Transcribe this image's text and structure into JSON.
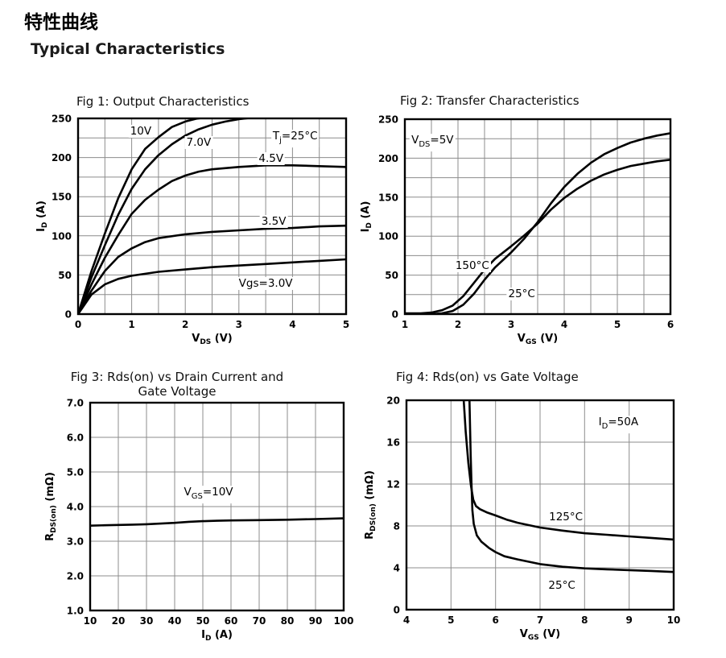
{
  "page": {
    "title_cn": "特性曲线",
    "title_en": "Typical Characteristics"
  },
  "colors": {
    "curve": "#000000",
    "grid": "#8c8c8c",
    "border": "#000000"
  },
  "chart_data": [
    {
      "id": "fig1",
      "type": "line",
      "title": "Fig 1: Output Characteristics",
      "xlabel": {
        "pre": "V",
        "sub": "DS",
        "post": " (V)"
      },
      "ylabel": {
        "pre": "I",
        "sub": "D",
        "post": " (A)"
      },
      "xlim": [
        0,
        5
      ],
      "ylim": [
        0,
        250
      ],
      "x_major": 1,
      "x_minor": 0.5,
      "y_major": 50,
      "y_minor": 25,
      "x_decimals": 0,
      "y_decimals": 0,
      "grid": true,
      "legend": "none",
      "series": [
        {
          "name": "Vgs=10V",
          "points": [
            [
              0,
              0
            ],
            [
              0.1,
              22
            ],
            [
              0.25,
              55
            ],
            [
              0.5,
              103
            ],
            [
              0.75,
              148
            ],
            [
              1,
              185
            ],
            [
              1.25,
              211
            ],
            [
              1.5,
              226
            ],
            [
              1.75,
              239
            ],
            [
              2,
              246
            ],
            [
              2.2,
              249.5
            ],
            [
              2.45,
              252
            ]
          ]
        },
        {
          "name": "Vgs=7.0V",
          "points": [
            [
              0,
              0
            ],
            [
              0.25,
              47
            ],
            [
              0.5,
              88
            ],
            [
              0.75,
              127
            ],
            [
              1,
              160
            ],
            [
              1.25,
              185
            ],
            [
              1.5,
              203
            ],
            [
              1.75,
              217
            ],
            [
              2,
              228
            ],
            [
              2.25,
              236
            ],
            [
              2.5,
              242
            ],
            [
              2.75,
              246
            ],
            [
              3,
              249
            ],
            [
              3.2,
              250.5
            ],
            [
              3.45,
              252
            ]
          ]
        },
        {
          "name": "Vgs=4.5V",
          "points": [
            [
              0,
              0
            ],
            [
              0.25,
              38
            ],
            [
              0.5,
              72
            ],
            [
              0.75,
              101
            ],
            [
              1,
              128
            ],
            [
              1.25,
              146
            ],
            [
              1.5,
              159
            ],
            [
              1.75,
              170
            ],
            [
              2,
              177
            ],
            [
              2.25,
              182
            ],
            [
              2.5,
              185
            ],
            [
              3,
              188
            ],
            [
              3.5,
              190
            ],
            [
              4,
              190
            ],
            [
              4.5,
              189
            ],
            [
              5,
              188
            ]
          ]
        },
        {
          "name": "Vgs=3.5V",
          "points": [
            [
              0,
              0
            ],
            [
              0.25,
              30
            ],
            [
              0.5,
              55
            ],
            [
              0.75,
              73
            ],
            [
              1,
              84
            ],
            [
              1.25,
              92
            ],
            [
              1.5,
              97
            ],
            [
              2,
              102
            ],
            [
              2.5,
              105
            ],
            [
              3,
              107
            ],
            [
              3.5,
              109
            ],
            [
              4,
              110
            ],
            [
              4.5,
              112
            ],
            [
              5,
              113
            ]
          ]
        },
        {
          "name": "Vgs=3.0V",
          "points": [
            [
              0,
              0
            ],
            [
              0.25,
              25
            ],
            [
              0.5,
              38
            ],
            [
              0.75,
              45
            ],
            [
              1,
              49
            ],
            [
              1.5,
              54
            ],
            [
              2,
              57
            ],
            [
              2.5,
              60
            ],
            [
              3,
              62
            ],
            [
              3.5,
              64
            ],
            [
              4,
              66
            ],
            [
              4.5,
              68
            ],
            [
              5,
              70
            ]
          ]
        }
      ],
      "annotations": [
        {
          "pre": "10V",
          "sub": "",
          "post": "",
          "x": 1.17,
          "y": 234
        },
        {
          "pre": "7.0V",
          "sub": "",
          "post": "",
          "x": 2.25,
          "y": 219
        },
        {
          "pre": "T",
          "sub": "j",
          "post": "=25°C",
          "x": 4.05,
          "y": 224
        },
        {
          "pre": "4.5V",
          "sub": "",
          "post": "",
          "x": 3.6,
          "y": 199
        },
        {
          "pre": "3.5V",
          "sub": "",
          "post": "",
          "x": 3.65,
          "y": 118
        },
        {
          "pre": "Vgs=3.0V",
          "sub": "",
          "post": "",
          "x": 3.5,
          "y": 39
        }
      ]
    },
    {
      "id": "fig2",
      "type": "line",
      "title": "Fig 2: Transfer Characteristics",
      "xlabel": {
        "pre": "V",
        "sub": "GS",
        "post": " (V)"
      },
      "ylabel": {
        "pre": "I",
        "sub": "D",
        "post": " (A)"
      },
      "xlim": [
        1,
        6
      ],
      "ylim": [
        0,
        250
      ],
      "x_major": 1,
      "x_minor": 0.5,
      "y_major": 50,
      "y_minor": 25,
      "x_decimals": 0,
      "y_decimals": 0,
      "grid": true,
      "legend": "none",
      "series": [
        {
          "name": "150°C",
          "points": [
            [
              1,
              1
            ],
            [
              1.3,
              1
            ],
            [
              1.5,
              2
            ],
            [
              1.7,
              5
            ],
            [
              1.9,
              11
            ],
            [
              2.1,
              23
            ],
            [
              2.3,
              40
            ],
            [
              2.5,
              57
            ],
            [
              2.7,
              71
            ],
            [
              3,
              87
            ],
            [
              3.25,
              101
            ],
            [
              3.5,
              116
            ],
            [
              3.75,
              134
            ],
            [
              4,
              149
            ],
            [
              4.25,
              161
            ],
            [
              4.5,
              171
            ],
            [
              4.75,
              179
            ],
            [
              5,
              185
            ],
            [
              5.25,
              190
            ],
            [
              5.5,
              193
            ],
            [
              5.75,
              196
            ],
            [
              6,
              198
            ]
          ]
        },
        {
          "name": "25°C",
          "points": [
            [
              1,
              0
            ],
            [
              1.5,
              0
            ],
            [
              1.7,
              1
            ],
            [
              1.9,
              4
            ],
            [
              2.1,
              12
            ],
            [
              2.3,
              26
            ],
            [
              2.5,
              44
            ],
            [
              2.7,
              60
            ],
            [
              3,
              79
            ],
            [
              3.25,
              97
            ],
            [
              3.5,
              118
            ],
            [
              3.75,
              142
            ],
            [
              4,
              163
            ],
            [
              4.25,
              180
            ],
            [
              4.5,
              194
            ],
            [
              4.75,
              205
            ],
            [
              5,
              213
            ],
            [
              5.25,
              220
            ],
            [
              5.5,
              225
            ],
            [
              5.75,
              229
            ],
            [
              6,
              232
            ]
          ]
        }
      ],
      "annotations": [
        {
          "pre": "V",
          "sub": "DS",
          "post": "=5V",
          "x": 1.52,
          "y": 220
        },
        {
          "pre": "150°C",
          "sub": "",
          "post": "",
          "x": 2.27,
          "y": 62
        },
        {
          "pre": "25°C",
          "sub": "",
          "post": "",
          "x": 3.2,
          "y": 26
        }
      ]
    },
    {
      "id": "fig3",
      "type": "line",
      "title": "Fig 3: Rds(on) vs Drain Current and\nGate Voltage",
      "xlabel": {
        "pre": "I",
        "sub": "D",
        "post": " (A)"
      },
      "ylabel": {
        "pre": "R",
        "sub": "DS(on)",
        "post": " (mΩ)"
      },
      "xlim": [
        10,
        100
      ],
      "ylim": [
        1,
        7
      ],
      "x_major": 10,
      "x_minor": 10,
      "y_major": 1,
      "y_minor": 1,
      "x_decimals": 0,
      "y_decimals": 1,
      "grid": true,
      "legend": "none",
      "series": [
        {
          "name": "VGS=10V",
          "points": [
            [
              10,
              3.45
            ],
            [
              15,
              3.46
            ],
            [
              20,
              3.47
            ],
            [
              25,
              3.48
            ],
            [
              30,
              3.49
            ],
            [
              35,
              3.51
            ],
            [
              40,
              3.53
            ],
            [
              45,
              3.56
            ],
            [
              50,
              3.58
            ],
            [
              55,
              3.59
            ],
            [
              60,
              3.6
            ],
            [
              70,
              3.61
            ],
            [
              80,
              3.62
            ],
            [
              90,
              3.64
            ],
            [
              100,
              3.66
            ]
          ]
        }
      ],
      "annotations": [
        {
          "pre": "V",
          "sub": "GS",
          "post": "=10V",
          "x": 52,
          "y": 4.35
        }
      ]
    },
    {
      "id": "fig4",
      "type": "line",
      "title": "Fig 4: Rds(on) vs Gate Voltage",
      "xlabel": {
        "pre": "V",
        "sub": "GS",
        "post": " (V)"
      },
      "ylabel": {
        "pre": "R",
        "sub": "DS(on)",
        "post": " (mΩ)"
      },
      "xlim": [
        4,
        10
      ],
      "ylim": [
        0,
        20
      ],
      "x_major": 1,
      "x_minor": 1,
      "y_major": 4,
      "y_minor": 4,
      "x_decimals": 0,
      "y_decimals": 0,
      "grid": true,
      "legend": "none",
      "series": [
        {
          "name": "125°C",
          "points": [
            [
              5.27,
              21
            ],
            [
              5.33,
              17
            ],
            [
              5.39,
              14
            ],
            [
              5.45,
              11.8
            ],
            [
              5.5,
              10.5
            ],
            [
              5.56,
              9.9
            ],
            [
              5.65,
              9.6
            ],
            [
              5.8,
              9.3
            ],
            [
              6,
              9
            ],
            [
              6.25,
              8.6
            ],
            [
              6.5,
              8.3
            ],
            [
              7,
              7.85
            ],
            [
              7.5,
              7.55
            ],
            [
              8,
              7.3
            ],
            [
              8.5,
              7.15
            ],
            [
              9,
              7
            ],
            [
              9.5,
              6.85
            ],
            [
              10,
              6.7
            ]
          ]
        },
        {
          "name": "25°C",
          "points": [
            [
              5.41,
              21
            ],
            [
              5.44,
              15
            ],
            [
              5.46,
              12
            ],
            [
              5.48,
              9.5
            ],
            [
              5.51,
              8.2
            ],
            [
              5.58,
              7.1
            ],
            [
              5.68,
              6.5
            ],
            [
              5.85,
              5.9
            ],
            [
              6,
              5.5
            ],
            [
              6.2,
              5.1
            ],
            [
              6.5,
              4.8
            ],
            [
              7,
              4.35
            ],
            [
              7.5,
              4.1
            ],
            [
              8,
              3.95
            ],
            [
              8.5,
              3.85
            ],
            [
              9,
              3.78
            ],
            [
              9.5,
              3.7
            ],
            [
              10,
              3.6
            ]
          ]
        }
      ],
      "annotations": [
        {
          "pre": "I",
          "sub": "D",
          "post": "=50A",
          "x": 8.76,
          "y": 17.7
        },
        {
          "pre": "125°C",
          "sub": "",
          "post": "",
          "x": 7.58,
          "y": 8.85
        },
        {
          "pre": "25°C",
          "sub": "",
          "post": "",
          "x": 7.49,
          "y": 2.3
        }
      ]
    }
  ]
}
